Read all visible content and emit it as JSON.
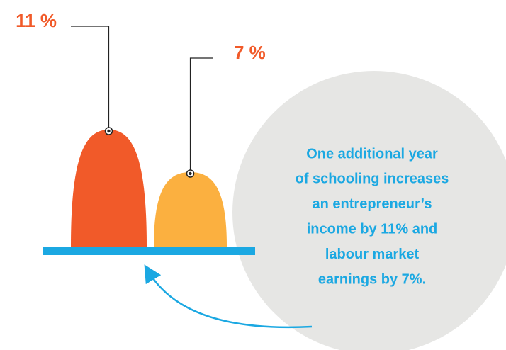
{
  "chart_data": {
    "type": "bell",
    "values": [
      11,
      7
    ],
    "value_labels": [
      "11 %",
      "7 %"
    ],
    "colors": [
      "#f15a29",
      "#fbb040"
    ],
    "annotation": [
      "One additional year",
      "of schooling increases",
      "an entrepreneur’s",
      "income by 11% and",
      "labour market",
      "earnings by 7%."
    ]
  }
}
